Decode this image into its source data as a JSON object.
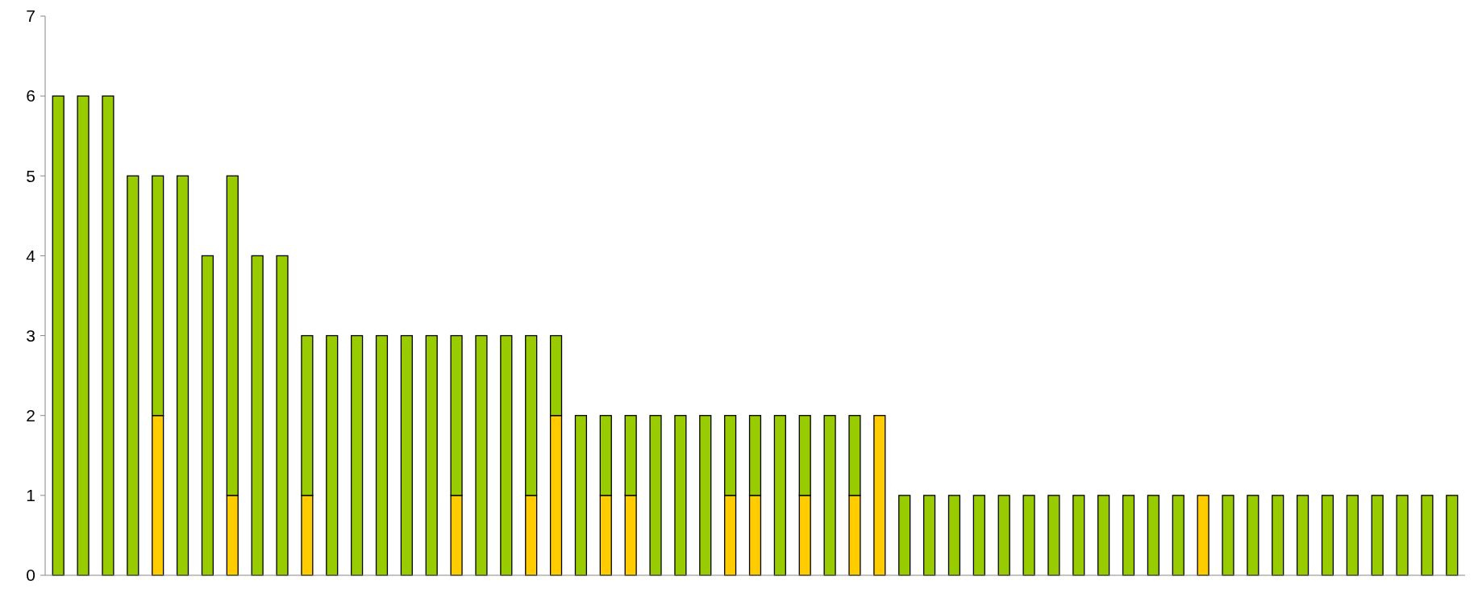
{
  "chart_data": {
    "type": "bar",
    "stacked": true,
    "categories": [
      null,
      null,
      null,
      null,
      null,
      null,
      null,
      null,
      null,
      null,
      null,
      null,
      null,
      null,
      null,
      null,
      null,
      null,
      null,
      null,
      null,
      null,
      null,
      null,
      null,
      null,
      null,
      null,
      null,
      null,
      null,
      null,
      null,
      null,
      null,
      null,
      null,
      null,
      null,
      null,
      null,
      null,
      null,
      null,
      null,
      null,
      null,
      null,
      null,
      null,
      null,
      null,
      null,
      null,
      null,
      null,
      null
    ],
    "series": [
      {
        "color": "#ffcc00",
        "values": [
          0,
          0,
          0,
          0,
          2,
          0,
          0,
          1,
          0,
          0,
          1,
          0,
          0,
          0,
          0,
          0,
          1,
          0,
          0,
          1,
          2,
          0,
          1,
          1,
          0,
          0,
          0,
          1,
          1,
          0,
          1,
          0,
          1,
          2,
          0,
          0,
          0,
          0,
          0,
          0,
          0,
          0,
          0,
          0,
          0,
          0,
          1,
          0,
          0,
          0,
          0,
          0,
          0,
          0,
          0,
          0,
          0
        ]
      },
      {
        "color": "#99cc00",
        "values": [
          6,
          6,
          6,
          5,
          3,
          5,
          4,
          4,
          4,
          4,
          2,
          3,
          3,
          3,
          3,
          3,
          2,
          3,
          3,
          2,
          1,
          2,
          1,
          1,
          2,
          2,
          2,
          1,
          1,
          2,
          1,
          2,
          1,
          0,
          1,
          1,
          1,
          1,
          1,
          1,
          1,
          1,
          1,
          1,
          1,
          1,
          0,
          1,
          1,
          1,
          1,
          1,
          1,
          1,
          1,
          1,
          1
        ]
      }
    ],
    "ylim": [
      0,
      7
    ],
    "yticks": [
      0,
      1,
      2,
      3,
      4,
      5,
      6,
      7
    ]
  }
}
